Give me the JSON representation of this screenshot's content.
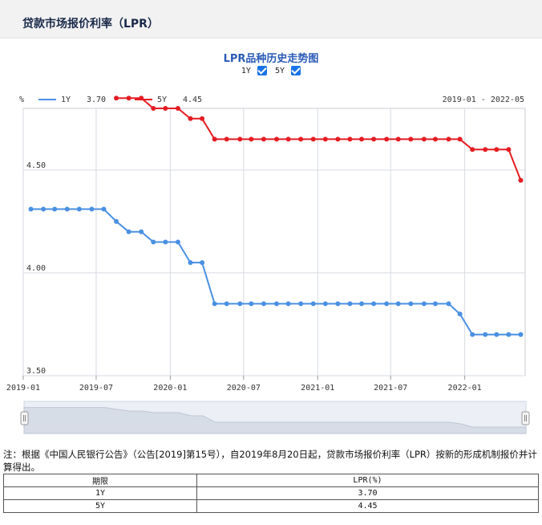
{
  "page": {
    "title": "贷款市场报价利率（LPR）"
  },
  "legend_toggles": [
    {
      "label": "1Y",
      "checked": true
    },
    {
      "label": "5Y",
      "checked": true
    }
  ],
  "chart_data": {
    "type": "line",
    "title": "LPR品种历史走势图",
    "ylabel": "%",
    "date_range": "2019-01 - 2022-05",
    "ylim": [
      3.5,
      4.8
    ],
    "y_ticks": [
      "4.50",
      "4.00",
      "3.50"
    ],
    "x_ticks": [
      "2019-01",
      "2019-07",
      "2020-01",
      "2020-07",
      "2021-01",
      "2021-07",
      "2022-01"
    ],
    "legend": [
      {
        "name": "1Y",
        "value": "3.70",
        "color": "#4a90e2"
      },
      {
        "name": "5Y",
        "value": "4.45",
        "color": "#e51c23"
      }
    ],
    "series": [
      {
        "name": "1Y",
        "color": "#4a90e2",
        "points": [
          [
            "2019-01-20",
            4.31
          ],
          [
            "2019-02-20",
            4.31
          ],
          [
            "2019-03-20",
            4.31
          ],
          [
            "2019-04-20",
            4.31
          ],
          [
            "2019-05-20",
            4.31
          ],
          [
            "2019-06-20",
            4.31
          ],
          [
            "2019-07-20",
            4.31
          ],
          [
            "2019-08-20",
            4.25
          ],
          [
            "2019-09-20",
            4.2
          ],
          [
            "2019-10-21",
            4.2
          ],
          [
            "2019-11-20",
            4.15
          ],
          [
            "2019-12-20",
            4.15
          ],
          [
            "2020-01-20",
            4.15
          ],
          [
            "2020-02-20",
            4.05
          ],
          [
            "2020-03-20",
            4.05
          ],
          [
            "2020-04-20",
            3.85
          ],
          [
            "2020-05-20",
            3.85
          ],
          [
            "2020-06-22",
            3.85
          ],
          [
            "2020-07-20",
            3.85
          ],
          [
            "2020-08-20",
            3.85
          ],
          [
            "2020-09-21",
            3.85
          ],
          [
            "2020-10-20",
            3.85
          ],
          [
            "2020-11-20",
            3.85
          ],
          [
            "2020-12-21",
            3.85
          ],
          [
            "2021-01-20",
            3.85
          ],
          [
            "2021-02-20",
            3.85
          ],
          [
            "2021-03-22",
            3.85
          ],
          [
            "2021-04-20",
            3.85
          ],
          [
            "2021-05-20",
            3.85
          ],
          [
            "2021-06-21",
            3.85
          ],
          [
            "2021-07-20",
            3.85
          ],
          [
            "2021-08-20",
            3.85
          ],
          [
            "2021-09-22",
            3.85
          ],
          [
            "2021-10-20",
            3.85
          ],
          [
            "2021-11-22",
            3.85
          ],
          [
            "2021-12-20",
            3.8
          ],
          [
            "2022-01-20",
            3.7
          ],
          [
            "2022-02-21",
            3.7
          ],
          [
            "2022-03-21",
            3.7
          ],
          [
            "2022-04-20",
            3.7
          ],
          [
            "2022-05-20",
            3.7
          ]
        ]
      },
      {
        "name": "5Y",
        "color": "#e51c23",
        "points": [
          [
            "2019-08-20",
            4.85
          ],
          [
            "2019-09-20",
            4.85
          ],
          [
            "2019-10-21",
            4.85
          ],
          [
            "2019-11-20",
            4.8
          ],
          [
            "2019-12-20",
            4.8
          ],
          [
            "2020-01-20",
            4.8
          ],
          [
            "2020-02-20",
            4.75
          ],
          [
            "2020-03-20",
            4.75
          ],
          [
            "2020-04-20",
            4.65
          ],
          [
            "2020-05-20",
            4.65
          ],
          [
            "2020-06-22",
            4.65
          ],
          [
            "2020-07-20",
            4.65
          ],
          [
            "2020-08-20",
            4.65
          ],
          [
            "2020-09-21",
            4.65
          ],
          [
            "2020-10-20",
            4.65
          ],
          [
            "2020-11-20",
            4.65
          ],
          [
            "2020-12-21",
            4.65
          ],
          [
            "2021-01-20",
            4.65
          ],
          [
            "2021-02-20",
            4.65
          ],
          [
            "2021-03-22",
            4.65
          ],
          [
            "2021-04-20",
            4.65
          ],
          [
            "2021-05-20",
            4.65
          ],
          [
            "2021-06-21",
            4.65
          ],
          [
            "2021-07-20",
            4.65
          ],
          [
            "2021-08-20",
            4.65
          ],
          [
            "2021-09-22",
            4.65
          ],
          [
            "2021-10-20",
            4.65
          ],
          [
            "2021-11-22",
            4.65
          ],
          [
            "2021-12-20",
            4.65
          ],
          [
            "2022-01-20",
            4.6
          ],
          [
            "2022-02-21",
            4.6
          ],
          [
            "2022-03-21",
            4.6
          ],
          [
            "2022-04-20",
            4.6
          ],
          [
            "2022-05-20",
            4.45
          ]
        ]
      }
    ]
  },
  "note": "注：根据《中国人民银行公告》（公告[2019]第15号），自2019年8月20日起，贷款市场报价利率（LPR）按新的形成机制报价并计算得出。",
  "table": {
    "headers": [
      "期限",
      "LPR(%)"
    ],
    "rows": [
      [
        "1Y",
        "3.70"
      ],
      [
        "5Y",
        "4.45"
      ]
    ]
  }
}
